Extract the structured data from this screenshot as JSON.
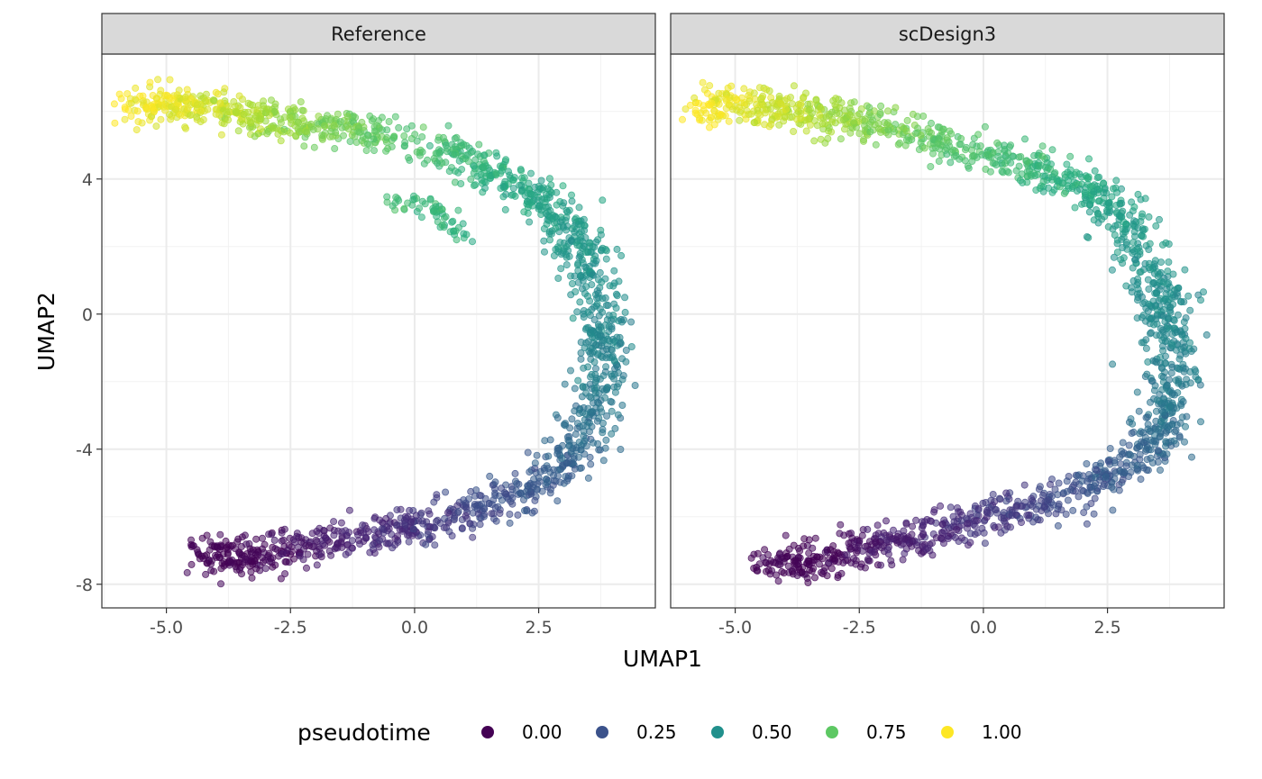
{
  "chart_data": {
    "type": "scatter",
    "facets": [
      "Reference",
      "scDesign3"
    ],
    "xlabel": "UMAP1",
    "ylabel": "UMAP2",
    "xlim": [
      -6.3,
      4.85
    ],
    "ylim": [
      -8.7,
      7.7
    ],
    "x_ticks": [
      -5.0,
      -2.5,
      0.0,
      2.5
    ],
    "x_tick_labels": [
      "-5.0",
      "-2.5",
      "0.0",
      "2.5"
    ],
    "y_ticks": [
      4,
      0,
      -4,
      -8
    ],
    "y_tick_labels": [
      "4",
      "0",
      "-4",
      "-8"
    ],
    "grid": true,
    "color_variable": "pseudotime",
    "legend": {
      "title": "pseudotime",
      "position": "bottom",
      "entries": [
        {
          "label": "0.00",
          "color": "#440154"
        },
        {
          "label": "0.25",
          "color": "#3b528b"
        },
        {
          "label": "0.50",
          "color": "#21908c"
        },
        {
          "label": "0.75",
          "color": "#5dc863"
        },
        {
          "label": "1.00",
          "color": "#fde725"
        }
      ]
    },
    "series": [
      {
        "name": "Reference",
        "trajectory": [
          {
            "x": 3.6,
            "y": -2.8,
            "t": 0.4
          },
          {
            "x": 3.2,
            "y": -4.2,
            "t": 0.32
          },
          {
            "x": 2.3,
            "y": -5.2,
            "t": 0.26
          },
          {
            "x": 1.2,
            "y": -5.9,
            "t": 0.21
          },
          {
            "x": 0.0,
            "y": -6.3,
            "t": 0.16
          },
          {
            "x": -1.2,
            "y": -6.6,
            "t": 0.11
          },
          {
            "x": -2.4,
            "y": -6.9,
            "t": 0.05
          },
          {
            "x": -3.5,
            "y": -7.2,
            "t": 0.0
          },
          {
            "x": -4.2,
            "y": -7.1,
            "t": 0.0
          }
        ],
        "trajectory_top": [
          {
            "x": 3.6,
            "y": -2.8,
            "t": 0.4
          },
          {
            "x": 3.8,
            "y": -1.2,
            "t": 0.44
          },
          {
            "x": 3.7,
            "y": 0.2,
            "t": 0.48
          },
          {
            "x": 3.4,
            "y": 1.8,
            "t": 0.52
          },
          {
            "x": 2.9,
            "y": 3.0,
            "t": 0.56
          },
          {
            "x": 2.1,
            "y": 3.8,
            "t": 0.61
          },
          {
            "x": 1.0,
            "y": 4.6,
            "t": 0.67
          },
          {
            "x": -0.2,
            "y": 5.1,
            "t": 0.72
          },
          {
            "x": -1.5,
            "y": 5.5,
            "t": 0.78
          },
          {
            "x": -2.7,
            "y": 5.7,
            "t": 0.84
          },
          {
            "x": -3.8,
            "y": 6.0,
            "t": 0.91
          },
          {
            "x": -4.8,
            "y": 6.2,
            "t": 0.96
          },
          {
            "x": -5.7,
            "y": 6.2,
            "t": 1.0
          }
        ],
        "branch": [
          {
            "x": -0.6,
            "y": 3.4,
            "t": 0.7
          },
          {
            "x": 0.4,
            "y": 3.2,
            "t": 0.66
          },
          {
            "x": 0.9,
            "y": 2.3,
            "t": 0.64
          }
        ]
      },
      {
        "name": "scDesign3",
        "trajectory": [
          {
            "x": 3.7,
            "y": -2.8,
            "t": 0.4
          },
          {
            "x": 3.3,
            "y": -4.0,
            "t": 0.32
          },
          {
            "x": 2.4,
            "y": -4.9,
            "t": 0.27
          },
          {
            "x": 1.3,
            "y": -5.6,
            "t": 0.22
          },
          {
            "x": 0.2,
            "y": -5.9,
            "t": 0.17
          },
          {
            "x": -1.0,
            "y": -6.5,
            "t": 0.12
          },
          {
            "x": -2.3,
            "y": -6.9,
            "t": 0.06
          },
          {
            "x": -3.4,
            "y": -7.3,
            "t": 0.0
          },
          {
            "x": -4.4,
            "y": -7.4,
            "t": 0.0
          }
        ],
        "trajectory_top": [
          {
            "x": 3.7,
            "y": -2.8,
            "t": 0.4
          },
          {
            "x": 3.8,
            "y": -1.2,
            "t": 0.44
          },
          {
            "x": 3.6,
            "y": 0.2,
            "t": 0.48
          },
          {
            "x": 3.3,
            "y": 1.6,
            "t": 0.52
          },
          {
            "x": 2.8,
            "y": 2.9,
            "t": 0.56
          },
          {
            "x": 2.0,
            "y": 3.8,
            "t": 0.61
          },
          {
            "x": 0.9,
            "y": 4.4,
            "t": 0.67
          },
          {
            "x": -0.4,
            "y": 4.9,
            "t": 0.72
          },
          {
            "x": -1.6,
            "y": 5.4,
            "t": 0.78
          },
          {
            "x": -2.8,
            "y": 5.8,
            "t": 0.84
          },
          {
            "x": -3.9,
            "y": 6.0,
            "t": 0.91
          },
          {
            "x": -4.9,
            "y": 6.2,
            "t": 0.96
          },
          {
            "x": -5.7,
            "y": 6.2,
            "t": 1.0
          }
        ],
        "branch": []
      }
    ]
  }
}
